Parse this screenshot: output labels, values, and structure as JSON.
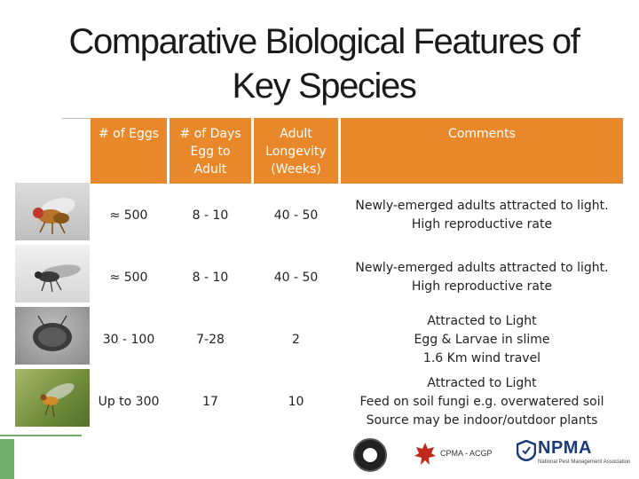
{
  "title_line1": "Comparative Biological Features of",
  "title_line2": "Key Species",
  "headers": {
    "eggs": "# of Eggs",
    "days_l1": "# of Days",
    "days_l2": "Egg to",
    "days_l3": "Adult",
    "longevity_l1": "Adult",
    "longevity_l2": "Longevity",
    "longevity_l3": "(Weeks)",
    "comments": "Comments"
  },
  "rows": [
    {
      "eggs": "≈ 500",
      "days": "8 - 10",
      "longevity": "40 - 50",
      "comment_lines": [
        "Newly-emerged adults attracted to light.",
        "High reproductive rate"
      ]
    },
    {
      "eggs": "≈ 500",
      "days": "8 - 10",
      "longevity": "40 - 50",
      "comment_lines": [
        "Newly-emerged adults attracted to light.",
        "High reproductive rate"
      ]
    },
    {
      "eggs": "30 - 100",
      "days": "7-28",
      "longevity": "2",
      "comment_lines": [
        "Attracted to Light",
        "Egg & Larvae in slime",
        "1.6 Km wind travel"
      ]
    },
    {
      "eggs": "Up to 300",
      "days": "17",
      "longevity": "10",
      "comment_lines": [
        "Attracted to Light",
        "Feed on soil fungi e.g. overwatered soil",
        "Source may be indoor/outdoor plants"
      ]
    }
  ],
  "logos": {
    "cpma_text": "CPMA - ACGP",
    "npma_text": "NPMA",
    "npma_sub": "National Pest Management Association"
  },
  "colors": {
    "header_orange": "#e8882a",
    "accent_green": "#6fae6b",
    "npma_blue": "#1b3a7a"
  },
  "icons": [
    "fruit-fly-photo",
    "dark-fly-photo",
    "moth-fly-photo",
    "fungus-gnat-photo",
    "seal-logo",
    "cpma-leaf-logo",
    "npma-logo"
  ]
}
